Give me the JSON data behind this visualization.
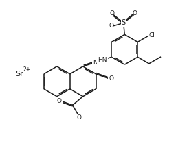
{
  "background_color": "#ffffff",
  "line_color": "#1a1a1a",
  "line_width": 1.1,
  "font_size": 6.5,
  "fig_width": 2.75,
  "fig_height": 2.13,
  "dpi": 100,
  "xlim": [
    0,
    10
  ],
  "ylim": [
    0,
    7.7
  ]
}
